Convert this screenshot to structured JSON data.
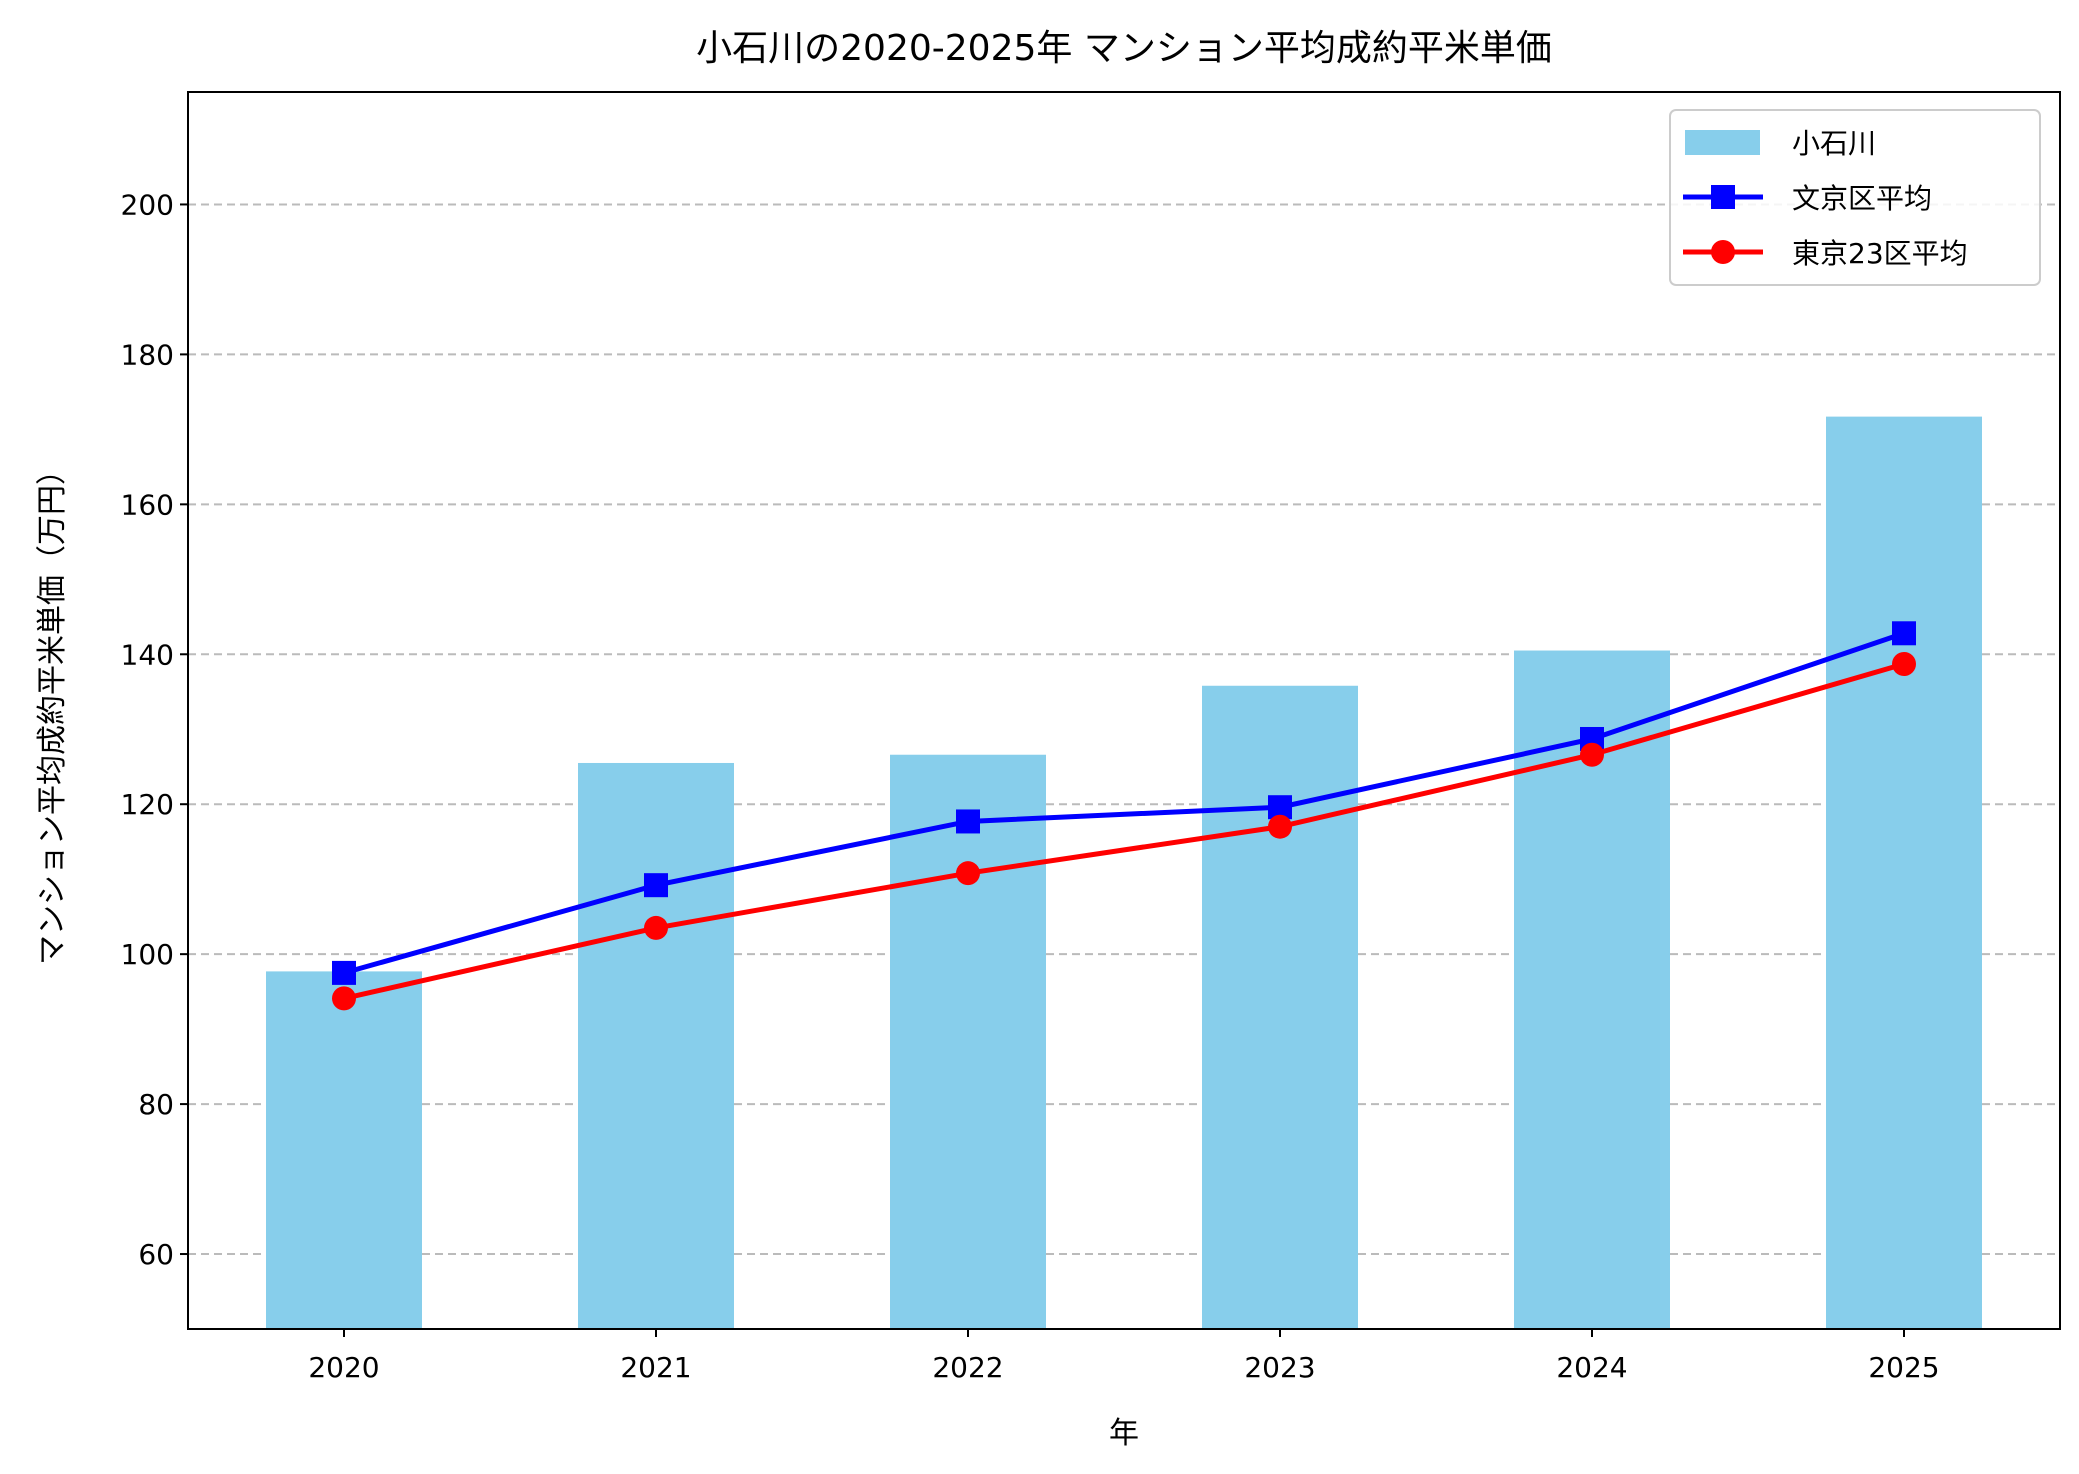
{
  "chart_data": {
    "type": "bar+line",
    "title": "小石川の2020-2025年 マンション平均成約平米単価",
    "xlabel": "年",
    "ylabel": "マンション平均成約平米単価（万円）",
    "categories": [
      "2020",
      "2021",
      "2022",
      "2023",
      "2024",
      "2025"
    ],
    "ylim": [
      50,
      215
    ],
    "yticks": [
      60,
      80,
      100,
      120,
      140,
      160,
      180,
      200
    ],
    "grid": "y-dashed",
    "legend_position": "top-right",
    "series": [
      {
        "name": "小石川",
        "kind": "bar",
        "color": "#87CEEB",
        "values": [
          97.7,
          125.5,
          126.6,
          135.8,
          140.5,
          171.7
        ]
      },
      {
        "name": "文京区平均",
        "kind": "line",
        "marker": "square",
        "color": "#0000FF",
        "values": [
          97.5,
          109.2,
          117.7,
          119.6,
          128.7,
          142.8
        ]
      },
      {
        "name": "東京23区平均",
        "kind": "line",
        "marker": "circle",
        "color": "#FF0000",
        "values": [
          94.1,
          103.5,
          110.8,
          117.0,
          126.6,
          138.7
        ]
      }
    ]
  }
}
